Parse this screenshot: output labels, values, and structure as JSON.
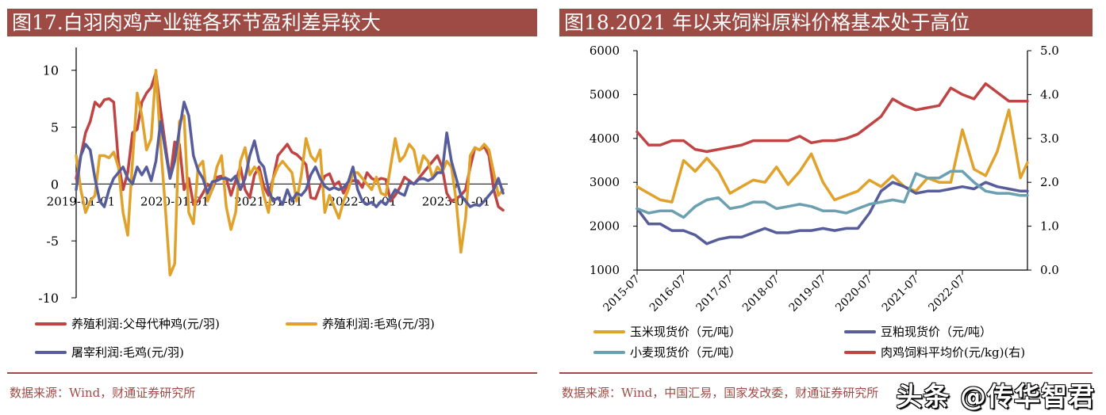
{
  "colors": {
    "title_bg": "#9e4b45",
    "red": "#bf4545",
    "gold": "#e0a22a",
    "navy": "#575d9a",
    "teal": "#6aa0b0"
  },
  "left_panel": {
    "title": "图17.白羽肉鸡产业链各环节盈利差异较大",
    "source": "数据来源：Wind，财通证券研究所"
  },
  "right_panel": {
    "title": "图18.2021 年以来饲料原料价格基本处于高位",
    "source": "数据来源：Wind，中国汇易，国家发改委，财通证券研究所",
    "watermark": "头条 @传华智君"
  },
  "chart_data": [
    {
      "type": "line",
      "title": "图17.白羽肉鸡产业链各环节盈利差异较大",
      "xlabel": "",
      "ylabel": "",
      "ylim": [
        -10,
        12
      ],
      "yticks": [
        "10",
        "5",
        "0",
        "-5",
        "-10"
      ],
      "ytick_values": [
        10,
        5,
        0,
        -5,
        -10
      ],
      "x_tick_labels": [
        "2019-01-01",
        "2020-01-01",
        "2021-01-01",
        "2022-01-01",
        "2023-01-01"
      ],
      "x_tick_values": [
        2019.0,
        2020.0,
        2021.0,
        2022.0,
        2023.0
      ],
      "xlim": [
        2018.95,
        2023.55
      ],
      "legend": "bottom",
      "grid": false,
      "x": [
        2018.95,
        2019.0,
        2019.05,
        2019.1,
        2019.15,
        2019.2,
        2019.25,
        2019.3,
        2019.35,
        2019.4,
        2019.45,
        2019.5,
        2019.55,
        2019.6,
        2019.65,
        2019.7,
        2019.75,
        2019.8,
        2019.85,
        2019.9,
        2019.95,
        2020.0,
        2020.05,
        2020.1,
        2020.15,
        2020.2,
        2020.25,
        2020.3,
        2020.35,
        2020.4,
        2020.45,
        2020.5,
        2020.55,
        2020.6,
        2020.65,
        2020.7,
        2020.75,
        2020.8,
        2020.85,
        2020.9,
        2020.95,
        2021.0,
        2021.05,
        2021.1,
        2021.15,
        2021.2,
        2021.25,
        2021.3,
        2021.35,
        2021.4,
        2021.45,
        2021.5,
        2021.55,
        2021.6,
        2021.65,
        2021.7,
        2021.75,
        2021.8,
        2021.85,
        2021.9,
        2021.95,
        2022.0,
        2022.05,
        2022.1,
        2022.15,
        2022.2,
        2022.25,
        2022.3,
        2022.35,
        2022.4,
        2022.45,
        2022.5,
        2022.55,
        2022.6,
        2022.65,
        2022.7,
        2022.75,
        2022.8,
        2022.85,
        2022.9,
        2022.95,
        2023.0,
        2023.05,
        2023.1,
        2023.15,
        2023.2,
        2023.25,
        2023.3,
        2023.35,
        2023.4,
        2023.45,
        2023.5
      ],
      "series": [
        {
          "name": "养殖利润:父母代种鸡(元/羽)",
          "color": "#bf4545",
          "values": [
            0.5,
            2.5,
            4.5,
            5.5,
            7.2,
            6.8,
            7.4,
            7.5,
            7.2,
            2.0,
            -0.5,
            1.0,
            4.5,
            4.8,
            7.2,
            8.0,
            8.5,
            9.8,
            6.5,
            3.5,
            0.5,
            3.7,
            3.5,
            -0.5,
            0.5,
            -1.8,
            -1.5,
            -0.8,
            0.0,
            -0.5,
            0.6,
            0.7,
            0.5,
            -1.0,
            0.3,
            1.5,
            -0.5,
            -1.2,
            0.8,
            1.5,
            -0.2,
            -1.0,
            0.5,
            2.5,
            3.0,
            3.5,
            2.8,
            2.6,
            2.2,
            1.7,
            -1.2,
            -1.3,
            -0.2,
            0.7,
            0.9,
            -0.1,
            0.2,
            -0.8,
            0.1,
            0.3,
            0.3,
            -0.3,
            1.0,
            0.5,
            0.3,
            0.5,
            0.4,
            -1.5,
            -1.0,
            -0.3,
            0.6,
            0.3,
            0.0,
            0.5,
            1.0,
            1.5,
            2.0,
            2.5,
            1.5,
            -0.8,
            -1.5,
            -1.3,
            -1.0,
            -0.5,
            1.5,
            3.2,
            3.0,
            3.3,
            2.5,
            -0.5,
            -2.0,
            -2.3
          ]
        },
        {
          "name": "养殖利润:毛鸡(元/羽)",
          "color": "#e0a22a",
          "values": [
            2.5,
            -0.5,
            -2.5,
            -1.5,
            -1.0,
            2.5,
            2.5,
            2.3,
            2.8,
            1.5,
            -2.5,
            -4.5,
            2.0,
            8.0,
            6.0,
            3.0,
            4.0,
            10.0,
            3.5,
            -2.0,
            -8.0,
            -7.0,
            5.5,
            6.0,
            -2.5,
            -3.5,
            1.5,
            2.0,
            -1.5,
            -0.5,
            1.5,
            2.5,
            -2.0,
            -4.0,
            -2.5,
            2.0,
            3.2,
            0.8,
            1.5,
            1.0,
            -1.0,
            -2.5,
            0.5,
            1.5,
            2.0,
            1.5,
            1.0,
            -1.5,
            0.8,
            4.0,
            2.5,
            2.0,
            3.0,
            -2.5,
            -1.0,
            -2.0,
            -3.0,
            -1.5,
            -0.5,
            1.0,
            1.0,
            0.5,
            0.0,
            -0.5,
            0.6,
            -0.8,
            -1.0,
            1.5,
            4.0,
            2.0,
            2.5,
            3.5,
            3.0,
            1.0,
            2.5,
            2.0,
            0.5,
            1.5,
            1.0,
            2.0,
            1.5,
            -1.5,
            -6.0,
            -3.0,
            2.5,
            3.2,
            3.0,
            3.5,
            3.0,
            1.0,
            -1.0,
            -0.5
          ]
        },
        {
          "name": "屠宰利润:毛鸡(元/羽)",
          "color": "#575d9a",
          "values": [
            -0.5,
            2.5,
            3.5,
            3.0,
            0.5,
            -1.5,
            -2.0,
            -0.5,
            0.5,
            1.0,
            1.5,
            0.5,
            0.0,
            1.5,
            0.8,
            1.5,
            0.3,
            2.0,
            5.5,
            3.0,
            0.5,
            2.0,
            4.8,
            7.2,
            6.0,
            2.5,
            1.2,
            0.5,
            -0.8,
            0.2,
            0.3,
            0.5,
            0.5,
            0.3,
            0.7,
            -0.5,
            0.5,
            2.5,
            3.8,
            2.0,
            1.5,
            -0.5,
            -1.5,
            -1.2,
            -1.8,
            -0.5,
            -1.5,
            -0.8,
            -1.0,
            -0.5,
            0.8,
            1.5,
            0.5,
            -0.2,
            -0.5,
            -0.3,
            -0.5,
            -0.3,
            0.2,
            1.5,
            -0.5,
            -1.5,
            -1.8,
            -1.6,
            -2.0,
            -1.5,
            -1.8,
            -1.2,
            -0.5,
            -0.8,
            -1.0,
            0.2,
            0.0,
            0.4,
            0.5,
            0.3,
            0.5,
            1.0,
            1.0,
            4.5,
            2.0,
            0.5,
            -1.0,
            -1.5,
            -2.0,
            -1.8,
            -1.9,
            -1.5,
            -1.0,
            -0.5,
            0.5,
            -0.8
          ]
        }
      ]
    },
    {
      "type": "line",
      "title": "图18.2021 年以来饲料原料价格基本处于高位",
      "xlabel": "",
      "ylabel": "",
      "ylim": [
        1000,
        6000
      ],
      "y2lim": [
        0.0,
        5.0
      ],
      "yticks": [
        "6000",
        "5000",
        "4000",
        "3000",
        "2000",
        "1000"
      ],
      "ytick_values": [
        6000,
        5000,
        4000,
        3000,
        2000,
        1000
      ],
      "y2ticks": [
        "5.0",
        "4.0",
        "3.0",
        "2.0",
        "1.0",
        "0.0"
      ],
      "y2tick_values": [
        5.0,
        4.0,
        3.0,
        2.0,
        1.0,
        0.0
      ],
      "x_tick_labels": [
        "2015-07",
        "2016-07",
        "2017-07",
        "2018-07",
        "2019-07",
        "2020-07",
        "2021-07",
        "2022-07"
      ],
      "x_tick_values": [
        2015.5,
        2016.5,
        2017.5,
        2018.5,
        2019.5,
        2020.5,
        2021.5,
        2022.5
      ],
      "xlim": [
        2015.5,
        2023.9
      ],
      "legend": "bottom",
      "grid": false,
      "x": [
        2015.5,
        2015.75,
        2016.0,
        2016.25,
        2016.5,
        2016.75,
        2017.0,
        2017.25,
        2017.5,
        2017.75,
        2018.0,
        2018.25,
        2018.5,
        2018.75,
        2019.0,
        2019.25,
        2019.5,
        2019.75,
        2020.0,
        2020.25,
        2020.5,
        2020.75,
        2021.0,
        2021.25,
        2021.5,
        2021.75,
        2022.0,
        2022.25,
        2022.5,
        2022.75,
        2023.0,
        2023.25,
        2023.5,
        2023.75,
        2023.9
      ],
      "series": [
        {
          "name": "玉米现货价（元/吨）",
          "color": "#e0a22a",
          "axis": "left",
          "values": [
            2900,
            2750,
            2600,
            2550,
            3500,
            3250,
            3550,
            3250,
            2750,
            2900,
            3050,
            3000,
            3350,
            2950,
            3250,
            3650,
            3000,
            2600,
            2700,
            2800,
            3050,
            2900,
            3150,
            2900,
            2800,
            3100,
            3000,
            3000,
            4200,
            3300,
            3150,
            3700,
            4650,
            3100,
            3450
          ]
        },
        {
          "name": "豆粕现货价（元/吨）",
          "color": "#575d9a",
          "axis": "left",
          "values": [
            2400,
            2050,
            2050,
            1900,
            1900,
            1800,
            1600,
            1700,
            1750,
            1750,
            1850,
            1950,
            1850,
            1850,
            1900,
            1900,
            1950,
            1900,
            1950,
            1950,
            2300,
            2800,
            3000,
            2900,
            2750,
            2800,
            2800,
            2850,
            2900,
            2850,
            3000,
            2900,
            2850,
            2800,
            2800
          ]
        },
        {
          "name": "小麦现货价（元/吨）",
          "color": "#6aa0b0",
          "axis": "left",
          "values": [
            2400,
            2300,
            2350,
            2350,
            2200,
            2450,
            2600,
            2650,
            2400,
            2450,
            2550,
            2550,
            2400,
            2450,
            2500,
            2450,
            2350,
            2350,
            2300,
            2400,
            2500,
            2550,
            2600,
            2550,
            3200,
            3100,
            3100,
            3250,
            3250,
            3000,
            2800,
            2750,
            2750,
            2700,
            2700
          ]
        },
        {
          "name": "肉鸡饲料平均价(元/kg)(右)",
          "color": "#bf4545",
          "axis": "right",
          "values": [
            3.15,
            2.85,
            2.85,
            2.95,
            2.95,
            2.75,
            2.7,
            2.75,
            2.8,
            2.85,
            2.95,
            2.95,
            2.95,
            2.95,
            3.05,
            2.9,
            2.95,
            2.95,
            3.0,
            3.1,
            3.3,
            3.5,
            3.9,
            3.75,
            3.65,
            3.7,
            3.75,
            4.15,
            4.0,
            3.9,
            4.25,
            4.05,
            3.85,
            3.85,
            3.85
          ]
        }
      ]
    }
  ]
}
